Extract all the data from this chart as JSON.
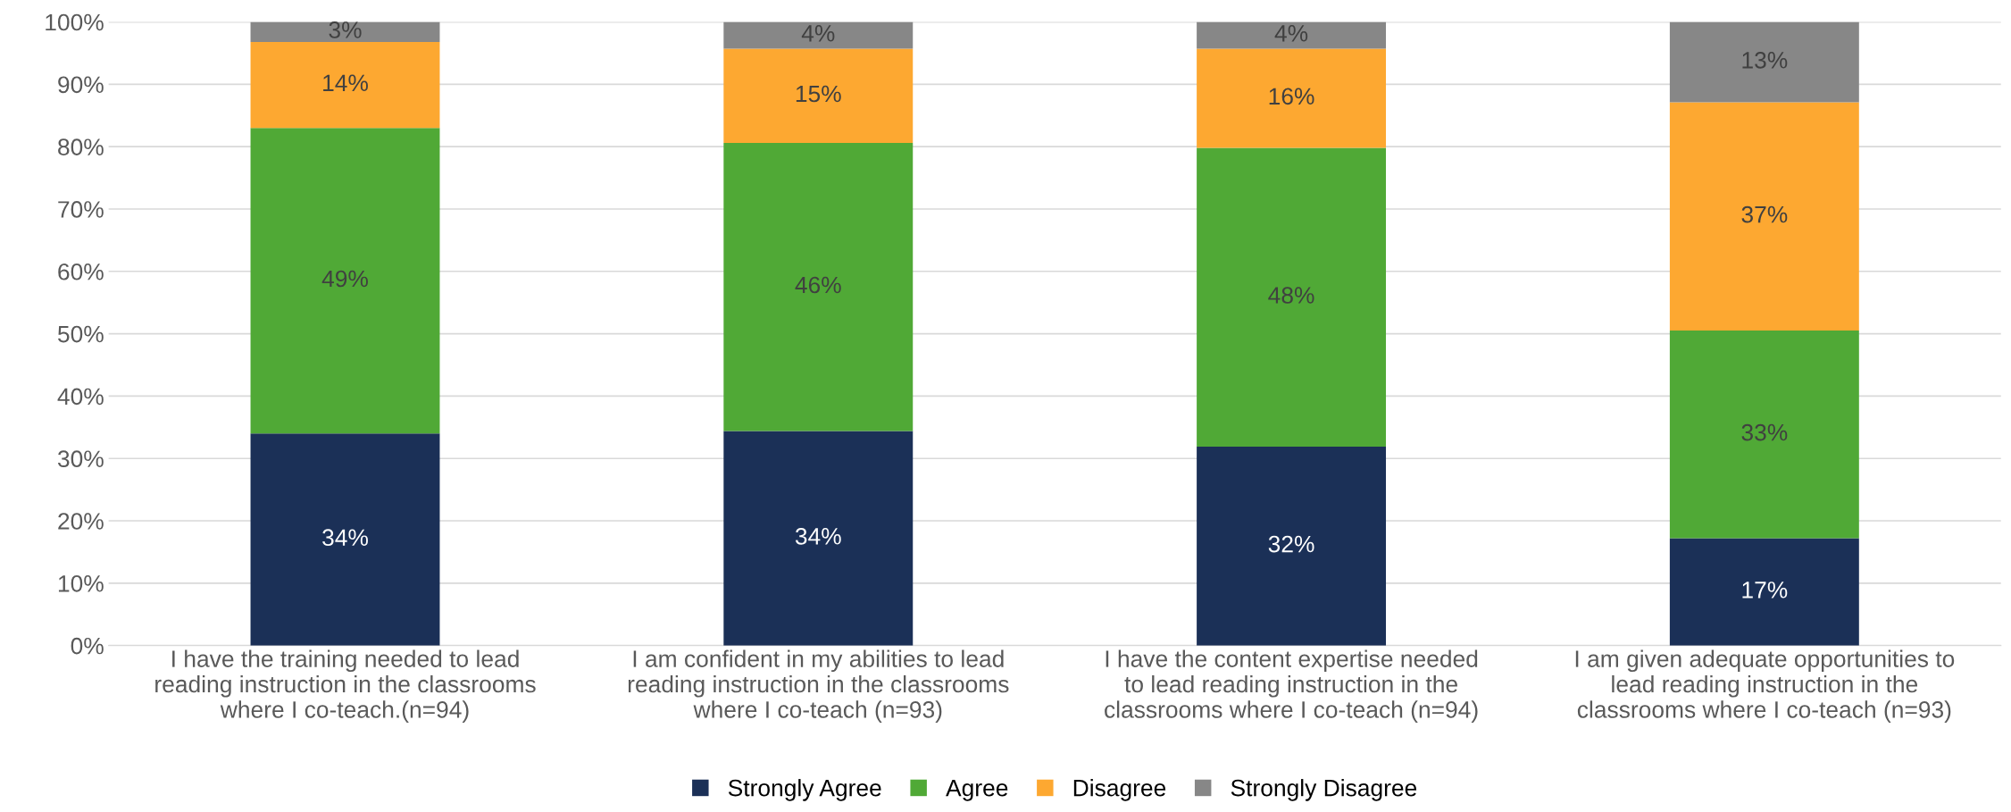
{
  "chart_data": {
    "type": "bar",
    "stacked": true,
    "categories": [
      "I have the training needed to lead\nreading instruction in the classrooms\nwhere I co-teach.(n=94)",
      "I am confident in my abilities to lead\nreading instruction in the classrooms\nwhere I co-teach (n=93)",
      "I have the content expertise needed\nto lead reading instruction in the\nclassrooms where I co-teach (n=94)",
      "I am given adequate opportunities to\nlead reading instruction in the\nclassrooms where I co-teach (n=93)"
    ],
    "series": [
      {
        "name": "Strongly Agree",
        "color": "#1b3057",
        "values": [
          34.0,
          34.4,
          31.9,
          17.2
        ],
        "value_labels": [
          "34%",
          "34%",
          "32%",
          "17%"
        ]
      },
      {
        "name": "Agree",
        "color": "#50a936",
        "values": [
          49.0,
          46.2,
          47.9,
          33.3
        ],
        "value_labels": [
          "49%",
          "46%",
          "48%",
          "33%"
        ]
      },
      {
        "name": "Disagree",
        "color": "#fda831",
        "values": [
          13.8,
          15.1,
          15.9,
          36.6
        ],
        "value_labels": [
          "14%",
          "15%",
          "16%",
          "37%"
        ]
      },
      {
        "name": "Strongly Disagree",
        "color": "#878787",
        "values": [
          3.2,
          4.3,
          4.3,
          12.9
        ],
        "value_labels": [
          "3%",
          "4%",
          "4%",
          "13%"
        ]
      }
    ],
    "ylim": [
      0,
      100
    ],
    "yticks": [
      {
        "value": 0,
        "label": "0%"
      },
      {
        "value": 10,
        "label": "10%"
      },
      {
        "value": 20,
        "label": "20%"
      },
      {
        "value": 30,
        "label": "30%"
      },
      {
        "value": 40,
        "label": "40%"
      },
      {
        "value": 50,
        "label": "50%"
      },
      {
        "value": 60,
        "label": "60%"
      },
      {
        "value": 70,
        "label": "70%"
      },
      {
        "value": 80,
        "label": "80%"
      },
      {
        "value": 90,
        "label": "90%"
      },
      {
        "value": 100,
        "label": "100%"
      }
    ],
    "grid": "y",
    "legend": "bottom"
  }
}
